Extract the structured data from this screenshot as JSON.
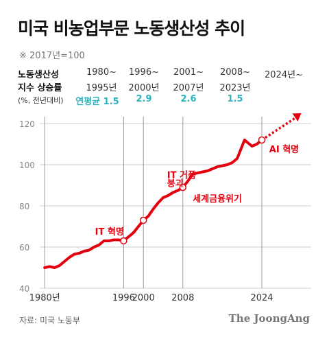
{
  "title": "미국 비농업부문 노동생산성 추이",
  "subtitle": "※ 2017년=100",
  "growth_table": {
    "label_line1": "노동생산성",
    "label_line2": "지수 상승률",
    "label_line3": "(%, 전년대비)",
    "periods": [
      {
        "top": "1980~",
        "bottom": "1995년",
        "value": "연평균 1.5"
      },
      {
        "top": "1996~",
        "bottom": "2000년",
        "value": "2.9"
      },
      {
        "top": "2001~",
        "bottom": "2007년",
        "value": "2.6"
      },
      {
        "top": "2008~",
        "bottom": "2023년",
        "value": "1.5"
      },
      {
        "top": "2024년~",
        "bottom": "",
        "value": ""
      }
    ]
  },
  "colors": {
    "line": "#e3000f",
    "accent": "#2bb3c0",
    "grid": "#cccccc",
    "marker_fill": "#ffffff"
  },
  "chart_data": {
    "type": "line",
    "title": "미국 비농업부문 노동생산성 추이",
    "xlabel": "",
    "ylabel": "",
    "xlim": [
      1979,
      2034
    ],
    "ylim": [
      40,
      120
    ],
    "yticks": [
      40,
      60,
      80,
      100,
      120
    ],
    "xtick_labels": [
      {
        "x": 1980,
        "label": "1980년"
      },
      {
        "x": 1996,
        "label": "1996"
      },
      {
        "x": 2000,
        "label": "2000"
      },
      {
        "x": 2008,
        "label": "2008"
      },
      {
        "x": 2024,
        "label": "2024"
      }
    ],
    "vlines": [
      1980,
      1996,
      2000,
      2008,
      2024
    ],
    "grid": true,
    "series": [
      {
        "name": "",
        "x": [
          1980,
          1981,
          1982,
          1983,
          1984,
          1985,
          1986,
          1987,
          1988,
          1989,
          1990,
          1991,
          1992,
          1993,
          1994,
          1995,
          1996,
          1997,
          1998,
          1999,
          2000,
          2001,
          2002,
          2003,
          2004,
          2005,
          2006,
          2007,
          2008,
          2009,
          2010,
          2011,
          2012,
          2013,
          2014,
          2015,
          2016,
          2017,
          2018,
          2019,
          2020,
          2020.5,
          2021,
          2022,
          2023,
          2024
        ],
        "y": [
          50,
          50.5,
          50,
          51,
          53,
          55,
          56.5,
          57,
          58,
          58.5,
          60,
          61,
          63,
          63,
          63.5,
          63.5,
          63,
          65,
          67,
          70,
          73,
          75,
          78.5,
          81.5,
          84,
          85,
          86.5,
          87.5,
          89,
          92,
          95.5,
          96,
          96.5,
          97,
          98,
          99,
          99.5,
          100,
          101,
          103,
          109,
          112,
          111,
          109,
          110,
          112
        ]
      }
    ],
    "markers": [
      1996,
      2000,
      2008,
      2024
    ],
    "projection": {
      "from": [
        2024,
        112
      ],
      "to": [
        2032,
        125
      ]
    },
    "annotations": [
      {
        "text": "IT 혁명",
        "x": 1990.2,
        "y": 66
      },
      {
        "text": "IT 거품",
        "x": 2004.8,
        "y": 93.5
      },
      {
        "text": "붕괴",
        "x": 2004.8,
        "y": 89.5
      },
      {
        "text": "세계금융위기",
        "x": 2010,
        "y": 82
      },
      {
        "text": "AI 혁명",
        "x": 2025.5,
        "y": 106
      }
    ]
  },
  "source": "자료: 미국 노동부",
  "brand": "The JoongAng"
}
